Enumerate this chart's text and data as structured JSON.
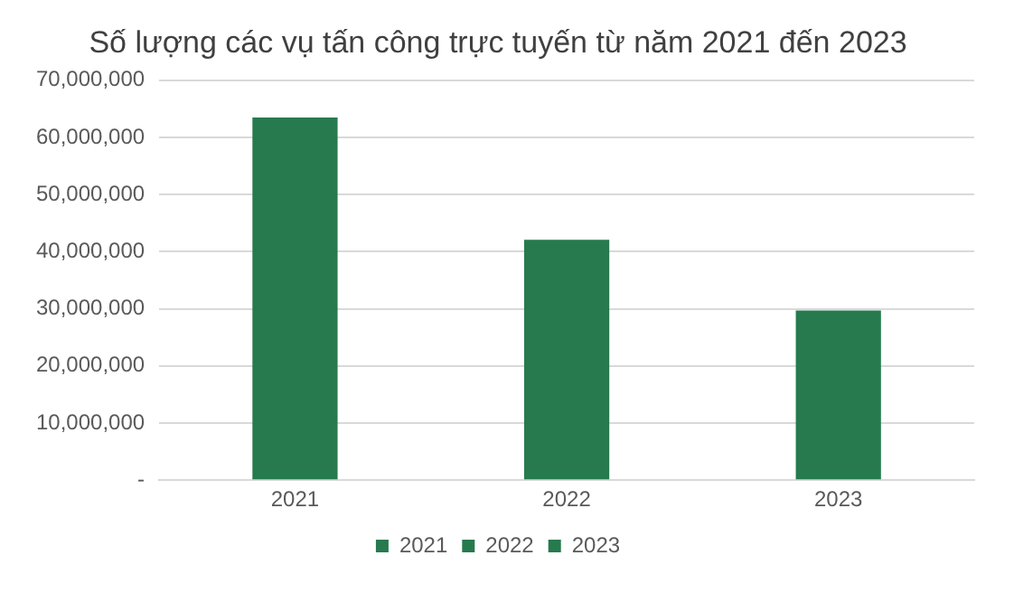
{
  "chart_data": {
    "type": "bar",
    "title": "Số lượng các vụ tấn công trực tuyến từ năm 2021 đến 2023",
    "categories": [
      "2021",
      "2022",
      "2023"
    ],
    "series": [
      {
        "name": "2021",
        "color": "#267a4e",
        "values": [
          63500000,
          null,
          null
        ]
      },
      {
        "name": "2022",
        "color": "#267a4e",
        "values": [
          null,
          42100000,
          null
        ]
      },
      {
        "name": "2023",
        "color": "#267a4e",
        "values": [
          null,
          null,
          29700000
        ]
      }
    ],
    "ylim": [
      0,
      70000000
    ],
    "yticks": [
      {
        "value": 0,
        "label": "-"
      },
      {
        "value": 10000000,
        "label": "10,000,000"
      },
      {
        "value": 20000000,
        "label": "20,000,000"
      },
      {
        "value": 30000000,
        "label": "30,000,000"
      },
      {
        "value": 40000000,
        "label": "40,000,000"
      },
      {
        "value": 50000000,
        "label": "50,000,000"
      },
      {
        "value": 60000000,
        "label": "60,000,000"
      },
      {
        "value": 70000000,
        "label": "70,000,000"
      }
    ],
    "grid": "y",
    "legend": "bottom"
  }
}
